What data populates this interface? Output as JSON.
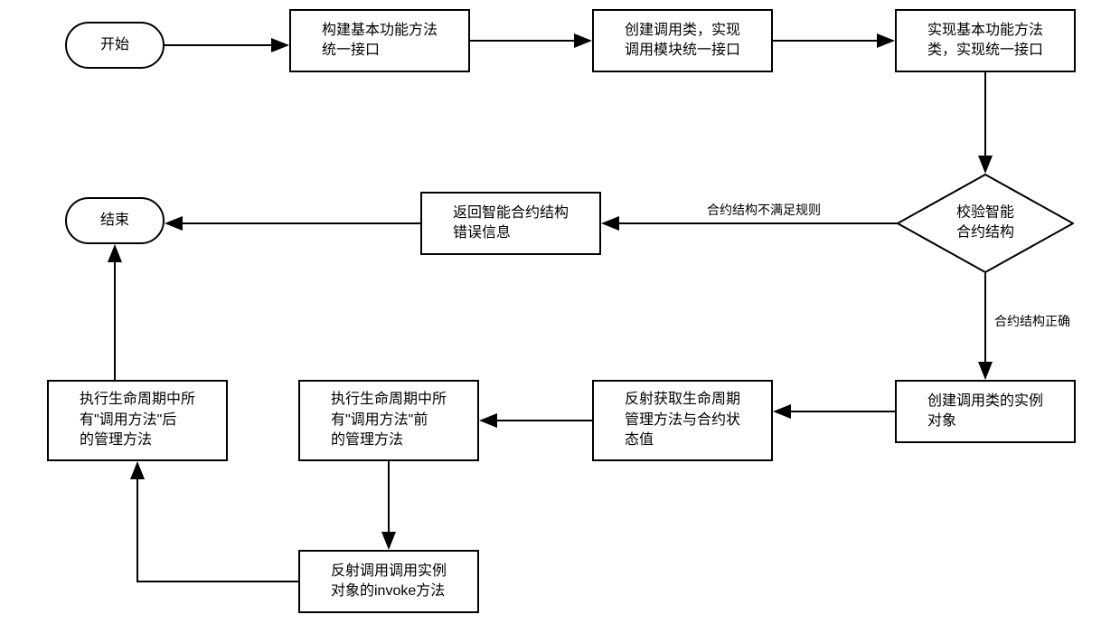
{
  "type": "flowchart",
  "background_color": "#ffffff",
  "stroke_color": "#000000",
  "stroke_width": 2,
  "font_size": 16,
  "label_font_size": 14,
  "nodes": {
    "start": {
      "text": "开始",
      "shape": "terminal"
    },
    "n1": {
      "text": "构建基本功能方法\n统一接口",
      "shape": "rect"
    },
    "n2": {
      "text": "创建调用类，实现\n调用模块统一接口",
      "shape": "rect"
    },
    "n3": {
      "text": "实现基本功能方法\n类，实现统一接口",
      "shape": "rect"
    },
    "d1": {
      "text": "校验智能\n合约结构",
      "shape": "diamond"
    },
    "n4": {
      "text": "返回智能合约结构\n错误信息",
      "shape": "rect"
    },
    "end": {
      "text": "结束",
      "shape": "terminal"
    },
    "n5": {
      "text": "创建调用类的实例\n对象",
      "shape": "rect"
    },
    "n6": {
      "text": "反射获取生命周期\n管理方法与合约状\n态值",
      "shape": "rect"
    },
    "n7": {
      "text": "执行生命周期中所\n有\"调用方法\"前\n的管理方法",
      "shape": "rect"
    },
    "n8": {
      "text": "反射调用调用实例\n对象的invoke方法",
      "shape": "rect"
    },
    "n9": {
      "text": "执行生命周期中所\n有\"调用方法\"后\n的管理方法",
      "shape": "rect"
    }
  },
  "edge_labels": {
    "fail": "合约结构不满足规则",
    "pass": "合约结构正确"
  }
}
